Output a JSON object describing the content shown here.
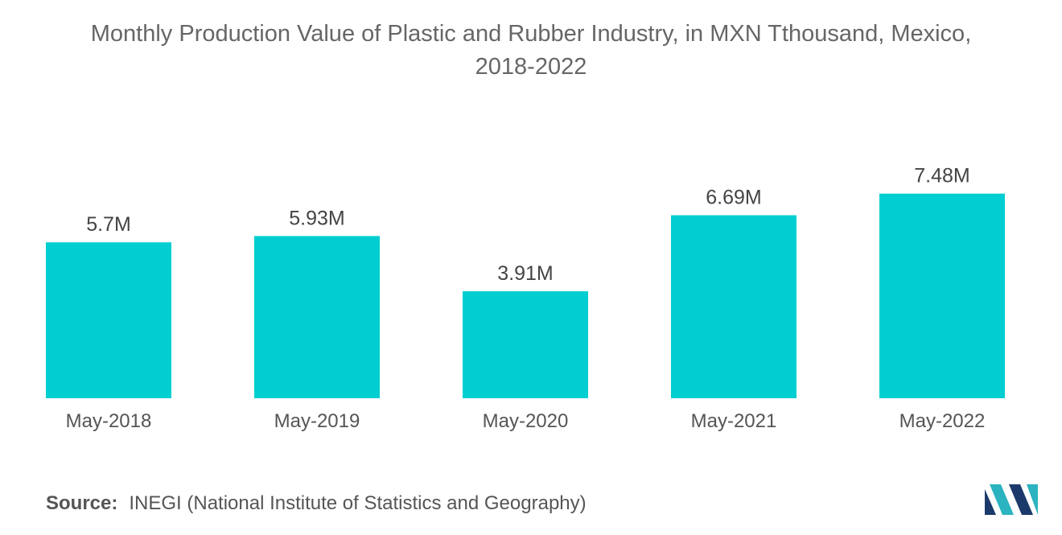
{
  "title_lines": [
    "Monthly Production Value of Plastic and Rubber Industry, in MXN Tthousand, Mexico,",
    "2018-2022"
  ],
  "chart_data": {
    "type": "bar",
    "title": "Monthly Production Value of Plastic and Rubber Industry, in MXN Tthousand, Mexico, 2018-2022",
    "categories": [
      "May-2018",
      "May-2019",
      "May-2020",
      "May-2021",
      "May-2022"
    ],
    "values": [
      5.7,
      5.93,
      3.91,
      6.69,
      7.48
    ],
    "value_labels": [
      "5.7M",
      "5.93M",
      "3.91M",
      "6.69M",
      "7.48M"
    ],
    "xlabel": "",
    "ylabel": "",
    "ylim": [
      0,
      10
    ],
    "grid": false,
    "legend": "none",
    "bar_color": "#00CED1"
  },
  "source": {
    "label": "Source:",
    "text": "INEGI (National Institute of Statistics and Geography)"
  },
  "logo": {
    "icon": "mordor-intelligence-logo",
    "colors": [
      "#1B3A6B",
      "#2BB3C0"
    ]
  }
}
